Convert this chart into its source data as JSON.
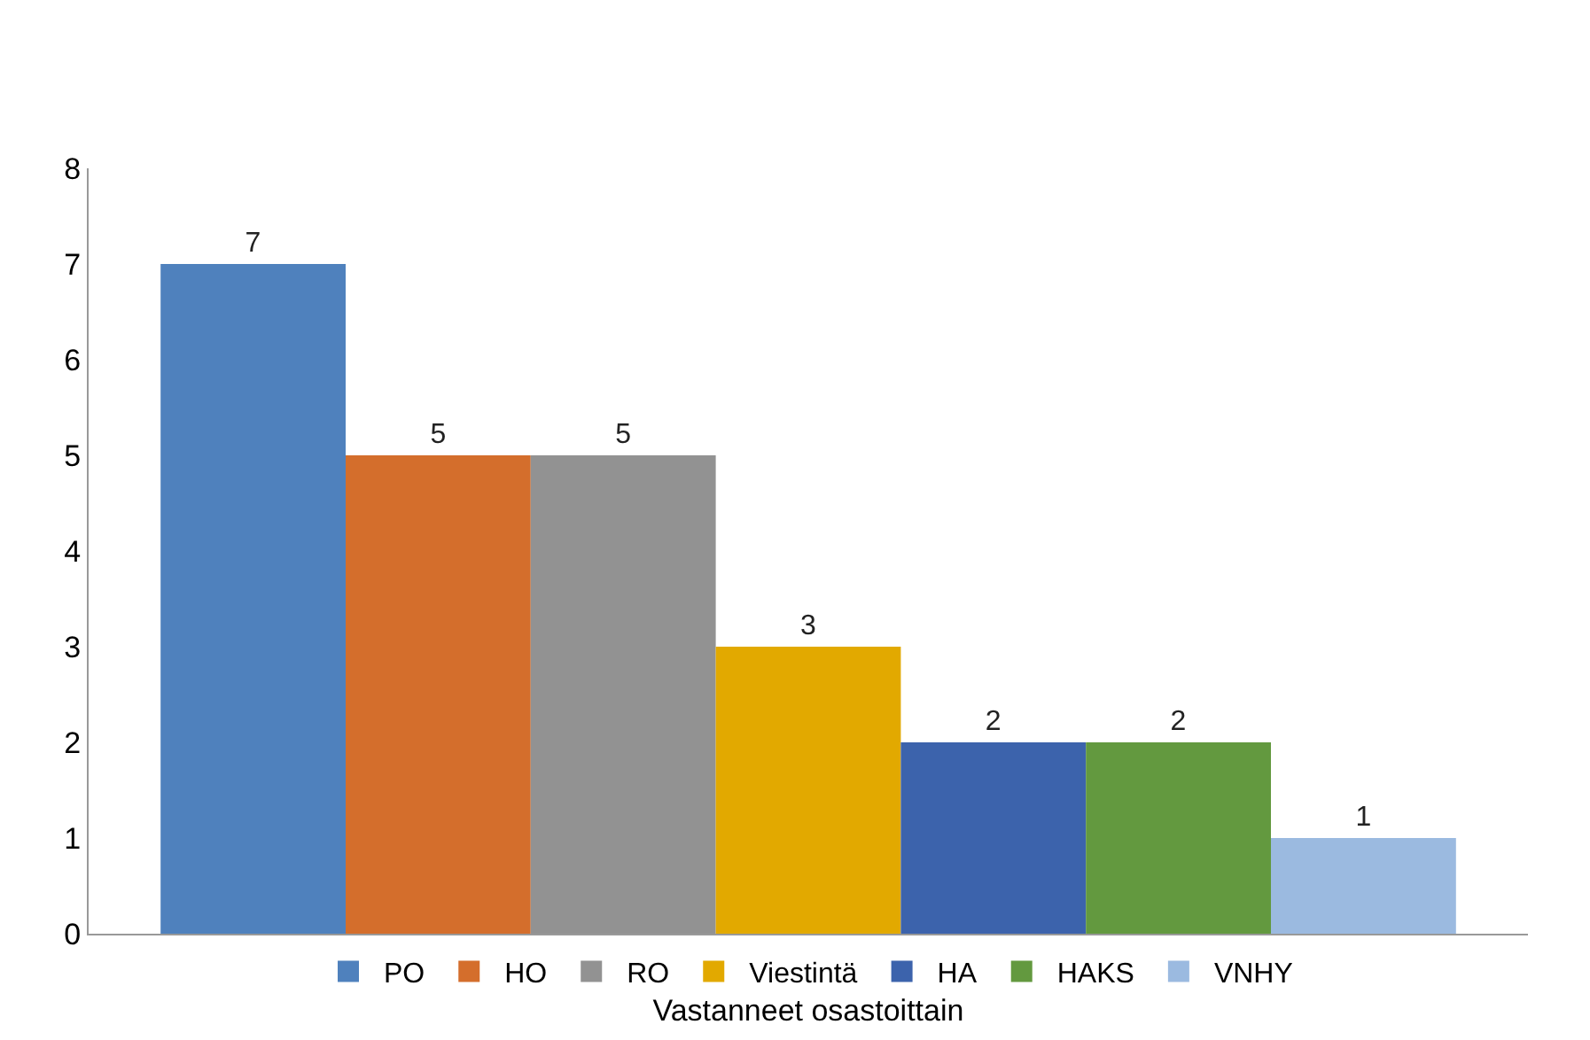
{
  "chart_data": {
    "type": "bar",
    "xlabel": "Vastanneet osastoittain",
    "categories": [
      null
    ],
    "series": [
      {
        "name": "PO",
        "color": "#4f81bd",
        "values": [
          7
        ]
      },
      {
        "name": "HO",
        "color": "#d46e2c",
        "values": [
          5
        ]
      },
      {
        "name": "RO",
        "color": "#929292",
        "values": [
          5
        ]
      },
      {
        "name": "Viestintä",
        "color": "#e2a900",
        "values": [
          3
        ]
      },
      {
        "name": "HA",
        "color": "#3c63ac",
        "values": [
          2
        ]
      },
      {
        "name": "HAKS",
        "color": "#63993f",
        "values": [
          2
        ]
      },
      {
        "name": "VNHY",
        "color": "#9bbae0",
        "values": [
          1
        ]
      }
    ],
    "ylim": [
      0,
      8
    ],
    "yticks": [
      0,
      1,
      2,
      3,
      4,
      5,
      6,
      7,
      8
    ],
    "data_labels": true,
    "legend": "bottom"
  }
}
